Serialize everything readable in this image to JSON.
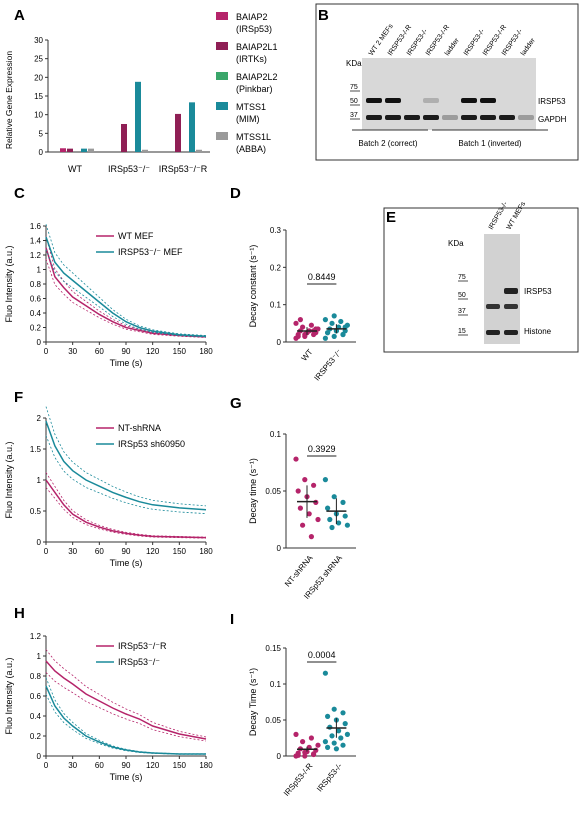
{
  "colors": {
    "magenta": "#b5246a",
    "teal": "#1a8a9a",
    "green": "#3aa66a",
    "gray": "#9a9a9a"
  },
  "panel_labels": [
    "A",
    "B",
    "C",
    "D",
    "E",
    "F",
    "G",
    "H",
    "I"
  ],
  "A": {
    "ylabel": "Relative Gene Expression",
    "legend": [
      {
        "name": "BAIAP2",
        "sub": "(IRSp53)",
        "color": "#b5246a"
      },
      {
        "name": "BAIAP2L1",
        "sub": "(IRTKs)",
        "color": "#8f1f55"
      },
      {
        "name": "BAIAP2L2",
        "sub": "(Pinkbar)",
        "color": "#3aa66a"
      },
      {
        "name": "MTSS1",
        "sub": "(MIM)",
        "color": "#1a8a9a"
      },
      {
        "name": "MTSS1L",
        "sub": "(ABBA)",
        "color": "#9a9a9a"
      }
    ]
  },
  "B": {
    "kda": "KDa",
    "lanes": [
      "WT 2 MEFs",
      "IRSP53-/-R",
      "IRSP53-/-",
      "IRSP53-/-R",
      "ladder",
      "IRSP53-/-",
      "IRSP53-/-R",
      "IRSP53-/-",
      "ladder"
    ],
    "markers": [
      "75",
      "50",
      "37"
    ],
    "bands": [
      "IRSP53",
      "GAPDH"
    ],
    "batch2": "Batch 2 (correct)",
    "batch1": "Batch 1 (inverted)"
  },
  "C": {
    "xlabel": "Time (s)",
    "ylabel": "Fluo Intensity (a.u.)",
    "legend": [
      "WT MEF",
      "IRSP53⁻/⁻ MEF"
    ]
  },
  "D": {
    "ylabel": "Decay constant (s⁻¹)",
    "pvalue": "0.8449",
    "groups": [
      "WT",
      "IRSP53⁻/⁻"
    ]
  },
  "E": {
    "lanes": [
      "IRSP53-/-",
      "WT MEFs"
    ],
    "kda": "KDa",
    "markers": [
      "75",
      "50",
      "37",
      "15"
    ],
    "bands": [
      "IRSP53",
      "Histone"
    ]
  },
  "F": {
    "xlabel": "Time (s)",
    "ylabel": "Fluo Intensity (a.u.)",
    "legend": [
      "NT-shRNA",
      "IRSp53 sh60950"
    ]
  },
  "G": {
    "ylabel": "Decay time (s⁻¹)",
    "pvalue": "0.3929",
    "groups": [
      "NT-shRNA",
      "IRSp53 shRNA"
    ]
  },
  "H": {
    "xlabel": "Time (s)",
    "ylabel": "Fluo Intensity (a.u.)",
    "legend": [
      "IRSp53⁻/⁻R",
      "IRSp53⁻/⁻"
    ]
  },
  "I": {
    "ylabel": "Decay Time (s⁻¹)",
    "pvalue": "0.0004",
    "groups": [
      "IRSp53-/-R",
      "IRSp53-/-"
    ]
  },
  "chart_data": [
    {
      "type": "bar",
      "panel": "A",
      "categories": [
        "WT",
        "IRSp53⁻/⁻",
        "IRSp53⁻/⁻R"
      ],
      "ylim": [
        0,
        30
      ],
      "yticks": [
        0,
        5,
        10,
        15,
        20,
        25,
        30
      ],
      "series": [
        {
          "name": "BAIAP2 (IRSp53)",
          "values": [
            1,
            0,
            0
          ]
        },
        {
          "name": "BAIAP2L1 (IRTKs)",
          "values": [
            0.9,
            7.5,
            10.2
          ]
        },
        {
          "name": "BAIAP2L2 (Pinkbar)",
          "values": [
            0,
            0,
            0
          ]
        },
        {
          "name": "MTSS1 (MIM)",
          "values": [
            0.9,
            18.8,
            13.3
          ]
        },
        {
          "name": "MTSS1L (ABBA)",
          "values": [
            0.9,
            0.6,
            0.6
          ]
        }
      ]
    },
    {
      "type": "line",
      "panel": "C",
      "xlim": [
        0,
        180
      ],
      "ylim": [
        0,
        1.6
      ],
      "xticks": [
        0,
        30,
        60,
        90,
        120,
        150,
        180
      ],
      "yticks": [
        0,
        0.2,
        0.4,
        0.6,
        0.8,
        1.0,
        1.2,
        1.4,
        1.6
      ],
      "x": [
        0,
        10,
        20,
        30,
        45,
        60,
        75,
        90,
        105,
        120,
        150,
        180
      ],
      "series": [
        {
          "name": "WT MEF",
          "values": [
            1.3,
            0.9,
            0.75,
            0.62,
            0.5,
            0.38,
            0.28,
            0.2,
            0.16,
            0.12,
            0.09,
            0.07
          ]
        },
        {
          "name": "IRSP53⁻/⁻ MEF",
          "values": [
            1.45,
            1.1,
            0.95,
            0.85,
            0.7,
            0.55,
            0.4,
            0.28,
            0.2,
            0.15,
            0.1,
            0.08
          ]
        }
      ]
    },
    {
      "type": "scatter",
      "panel": "D",
      "categories": [
        "WT",
        "IRSP53⁻/⁻"
      ],
      "ylim": [
        0,
        0.3
      ],
      "yticks": [
        0,
        0.1,
        0.2,
        0.3
      ],
      "series": [
        {
          "name": "WT",
          "values": [
            0.01,
            0.015,
            0.02,
            0.02,
            0.025,
            0.025,
            0.03,
            0.03,
            0.035,
            0.04,
            0.045,
            0.05,
            0.02,
            0.03,
            0.015,
            0.025,
            0.035,
            0.06
          ]
        },
        {
          "name": "IRSP53⁻/⁻",
          "values": [
            0.01,
            0.015,
            0.02,
            0.025,
            0.03,
            0.03,
            0.035,
            0.04,
            0.045,
            0.05,
            0.055,
            0.06,
            0.07,
            0.02,
            0.025,
            0.03,
            0.04
          ]
        }
      ]
    },
    {
      "type": "line",
      "panel": "F",
      "xlim": [
        0,
        180
      ],
      "ylim": [
        0,
        2.0
      ],
      "xticks": [
        0,
        30,
        60,
        90,
        120,
        150,
        180
      ],
      "yticks": [
        0,
        0.5,
        1.0,
        1.5,
        2.0
      ],
      "x": [
        0,
        10,
        20,
        30,
        45,
        60,
        75,
        90,
        105,
        120,
        150,
        180
      ],
      "series": [
        {
          "name": "NT-shRNA",
          "values": [
            1.0,
            0.8,
            0.6,
            0.45,
            0.32,
            0.24,
            0.18,
            0.14,
            0.11,
            0.09,
            0.08,
            0.07
          ]
        },
        {
          "name": "IRSp53 sh60950",
          "values": [
            1.95,
            1.55,
            1.3,
            1.15,
            1.0,
            0.9,
            0.8,
            0.72,
            0.65,
            0.6,
            0.55,
            0.52
          ]
        }
      ]
    },
    {
      "type": "scatter",
      "panel": "G",
      "categories": [
        "NT-shRNA",
        "IRSp53 shRNA"
      ],
      "ylim": [
        0,
        0.1
      ],
      "yticks": [
        0,
        0.05,
        0.1
      ],
      "series": [
        {
          "name": "NT-shRNA",
          "values": [
            0.078,
            0.06,
            0.055,
            0.05,
            0.045,
            0.04,
            0.035,
            0.03,
            0.025,
            0.02,
            0.01
          ]
        },
        {
          "name": "IRSp53 shRNA",
          "values": [
            0.06,
            0.045,
            0.04,
            0.035,
            0.03,
            0.028,
            0.025,
            0.022,
            0.02,
            0.018
          ]
        }
      ]
    },
    {
      "type": "line",
      "panel": "H",
      "xlim": [
        0,
        180
      ],
      "ylim": [
        0,
        1.2
      ],
      "xticks": [
        0,
        30,
        60,
        90,
        120,
        150,
        180
      ],
      "yticks": [
        0,
        0.2,
        0.4,
        0.6,
        0.8,
        1.0,
        1.2
      ],
      "x": [
        0,
        10,
        20,
        30,
        45,
        60,
        75,
        90,
        105,
        120,
        150,
        180
      ],
      "series": [
        {
          "name": "IRSp53⁻/⁻R",
          "values": [
            0.95,
            0.85,
            0.78,
            0.72,
            0.62,
            0.55,
            0.48,
            0.42,
            0.37,
            0.3,
            0.22,
            0.17
          ]
        },
        {
          "name": "IRSp53⁻/⁻",
          "values": [
            0.7,
            0.5,
            0.38,
            0.3,
            0.2,
            0.14,
            0.09,
            0.06,
            0.04,
            0.03,
            0.02,
            0.02
          ]
        }
      ]
    },
    {
      "type": "scatter",
      "panel": "I",
      "categories": [
        "IRSp53-/-R",
        "IRSp53-/-"
      ],
      "ylim": [
        0,
        0.15
      ],
      "yticks": [
        0,
        0.05,
        0.1,
        0.15
      ],
      "series": [
        {
          "name": "IRSp53-/-R",
          "values": [
            0.0,
            0.0,
            0.002,
            0.004,
            0.006,
            0.008,
            0.01,
            0.012,
            0.015,
            0.02,
            0.025,
            0.03,
            0.005,
            0.003,
            0.001
          ]
        },
        {
          "name": "IRSp53-/-",
          "values": [
            0.115,
            0.065,
            0.06,
            0.055,
            0.05,
            0.045,
            0.04,
            0.035,
            0.03,
            0.028,
            0.025,
            0.02,
            0.018,
            0.015,
            0.012,
            0.01
          ]
        }
      ]
    }
  ]
}
